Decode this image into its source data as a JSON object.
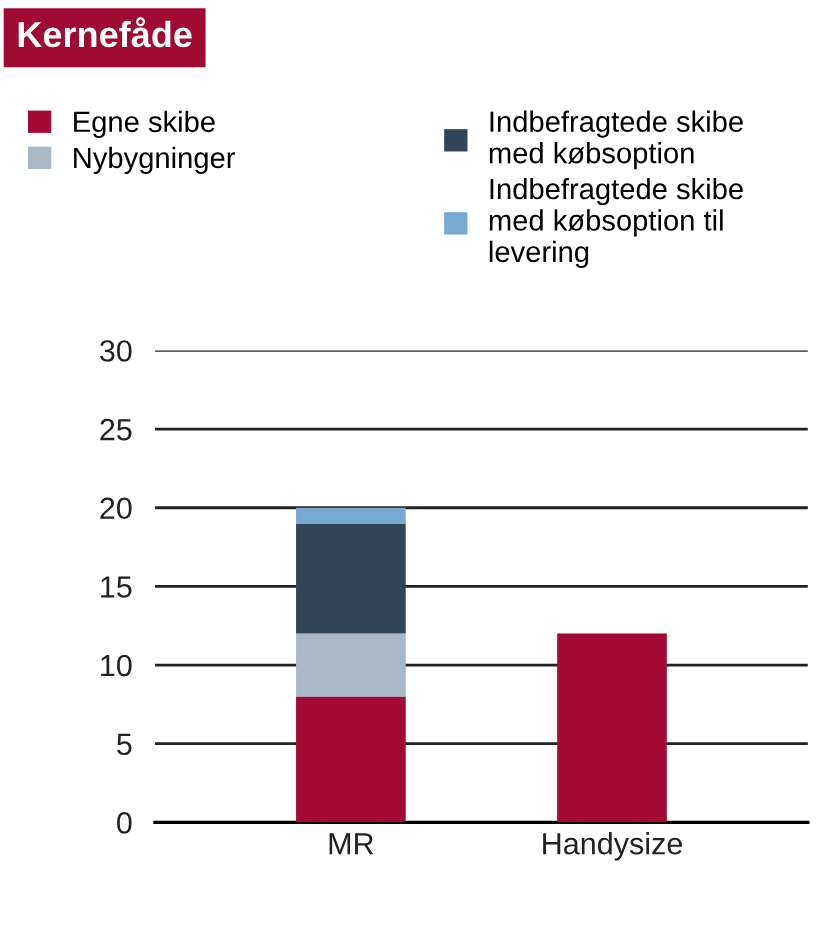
{
  "chart_data": {
    "type": "bar",
    "title": "Kernefåde",
    "stacked": true,
    "categories": [
      "MR",
      "Handysize"
    ],
    "series": [
      {
        "name": "Egne skibe",
        "color": "#a30b35",
        "values": [
          8,
          12
        ]
      },
      {
        "name": "Nybygninger",
        "color": "#aab8c6",
        "values": [
          4,
          0
        ]
      },
      {
        "name": "Indbefragtede skibe\nmed købsoption",
        "color": "#324558",
        "values": [
          7,
          0
        ]
      },
      {
        "name": "Indbefragtede skibe\nmed købsoption til\nlevering",
        "color": "#78a9d1",
        "values": [
          1,
          0
        ]
      }
    ],
    "ylim": [
      0,
      30
    ],
    "yticks": [
      0,
      5,
      10,
      15,
      20,
      25,
      30
    ],
    "grid": "y",
    "legend": "top"
  }
}
